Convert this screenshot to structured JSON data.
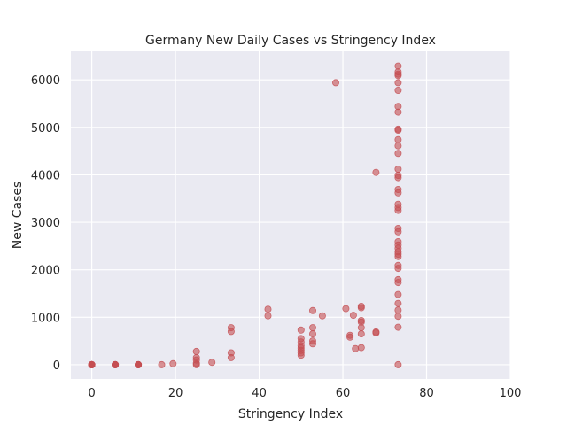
{
  "chart_data": {
    "type": "scatter",
    "title": "Germany New Daily Cases vs Stringency Index",
    "xlabel": "Stringency Index",
    "ylabel": "New Cases",
    "xlim": [
      -5,
      100
    ],
    "ylim": [
      -300,
      6600
    ],
    "xticks": [
      0,
      20,
      40,
      60,
      80,
      100
    ],
    "yticks": [
      0,
      1000,
      2000,
      3000,
      4000,
      5000,
      6000
    ],
    "grid": true,
    "colors": {
      "background": "#eaeaf2",
      "grid": "#ffffff",
      "marker": "#c44e52"
    },
    "series": [
      {
        "points": [
          [
            0,
            0
          ],
          [
            0,
            0
          ],
          [
            0,
            0
          ],
          [
            0,
            0
          ],
          [
            0,
            0
          ],
          [
            0,
            0
          ],
          [
            0,
            0
          ],
          [
            0,
            0
          ],
          [
            5.6,
            0
          ],
          [
            5.6,
            0
          ],
          [
            5.6,
            0
          ],
          [
            5.6,
            0
          ],
          [
            5.6,
            0
          ],
          [
            5.6,
            0
          ],
          [
            11.1,
            0
          ],
          [
            11.1,
            0
          ],
          [
            11.1,
            0
          ],
          [
            11.1,
            0
          ],
          [
            11.1,
            0
          ],
          [
            16.7,
            0
          ],
          [
            19.4,
            20
          ],
          [
            25,
            0
          ],
          [
            25,
            30
          ],
          [
            25,
            100
          ],
          [
            25,
            150
          ],
          [
            25,
            280
          ],
          [
            28.7,
            50
          ],
          [
            33.3,
            150
          ],
          [
            33.3,
            250
          ],
          [
            33.3,
            700
          ],
          [
            33.3,
            780
          ],
          [
            42.1,
            1030
          ],
          [
            42.1,
            1170
          ],
          [
            50,
            200
          ],
          [
            50,
            250
          ],
          [
            50,
            300
          ],
          [
            50,
            350
          ],
          [
            50,
            400
          ],
          [
            50,
            480
          ],
          [
            50,
            550
          ],
          [
            50,
            730
          ],
          [
            52.8,
            440
          ],
          [
            52.8,
            500
          ],
          [
            52.8,
            650
          ],
          [
            52.8,
            780
          ],
          [
            52.8,
            1140
          ],
          [
            55.1,
            1030
          ],
          [
            58.3,
            5940
          ],
          [
            60.7,
            1180
          ],
          [
            61.7,
            580
          ],
          [
            61.7,
            620
          ],
          [
            62.5,
            1040
          ],
          [
            63,
            340
          ],
          [
            64.4,
            360
          ],
          [
            64.4,
            650
          ],
          [
            64.4,
            780
          ],
          [
            64.4,
            900
          ],
          [
            64.4,
            930
          ],
          [
            64.4,
            1200
          ],
          [
            64.4,
            1230
          ],
          [
            67.9,
            670
          ],
          [
            67.9,
            690
          ],
          [
            67.9,
            4050
          ],
          [
            73.2,
            0
          ],
          [
            73.2,
            790
          ],
          [
            73.2,
            1020
          ],
          [
            73.2,
            1150
          ],
          [
            73.2,
            1290
          ],
          [
            73.2,
            1480
          ],
          [
            73.2,
            1730
          ],
          [
            73.2,
            1790
          ],
          [
            73.2,
            2030
          ],
          [
            73.2,
            2090
          ],
          [
            73.2,
            2280
          ],
          [
            73.2,
            2330
          ],
          [
            73.2,
            2380
          ],
          [
            73.2,
            2450
          ],
          [
            73.2,
            2520
          ],
          [
            73.2,
            2590
          ],
          [
            73.2,
            2800
          ],
          [
            73.2,
            2870
          ],
          [
            73.2,
            3250
          ],
          [
            73.2,
            3310
          ],
          [
            73.2,
            3380
          ],
          [
            73.2,
            3620
          ],
          [
            73.2,
            3690
          ],
          [
            73.2,
            3940
          ],
          [
            73.2,
            3990
          ],
          [
            73.2,
            4120
          ],
          [
            73.2,
            4450
          ],
          [
            73.2,
            4610
          ],
          [
            73.2,
            4740
          ],
          [
            73.2,
            4940
          ],
          [
            73.2,
            4960
          ],
          [
            73.2,
            5320
          ],
          [
            73.2,
            5440
          ],
          [
            73.2,
            5780
          ],
          [
            73.2,
            5940
          ],
          [
            73.2,
            6090
          ],
          [
            73.2,
            6120
          ],
          [
            73.2,
            6170
          ],
          [
            73.2,
            6290
          ]
        ]
      }
    ]
  }
}
